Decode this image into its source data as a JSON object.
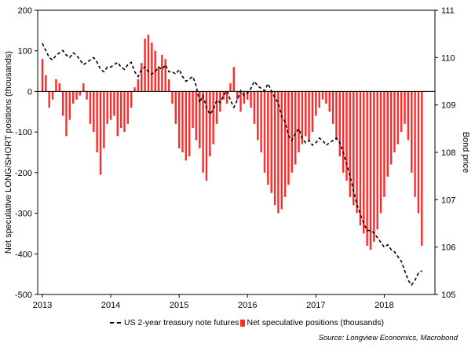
{
  "chart_data": {
    "type": "bar+line",
    "ylabel": "Net speculative LONG/SHORT positions (thousands)",
    "y2label": "Bond price",
    "source": "Source: Longview Economics, Macrobond",
    "ylim": [
      -500,
      200
    ],
    "y2lim": [
      105,
      111
    ],
    "y_ticks": [
      "200",
      "100",
      "0",
      "-100",
      "-200",
      "-300",
      "-400",
      "-500"
    ],
    "y2_ticks": [
      "111",
      "110",
      "109",
      "108",
      "107",
      "106",
      "105"
    ],
    "x_ticks": [
      "2013",
      "2014",
      "2015",
      "2016",
      "2017",
      "2018"
    ],
    "xlim": [
      2013.0,
      2018.65
    ],
    "grid": false,
    "legend_position": "bottom",
    "colors": {
      "bars": "#ff2a2a",
      "line": "#000000"
    },
    "series": [
      {
        "name": "US 2-year treasury note futures",
        "type": "line",
        "axis": "right",
        "style": "dashed",
        "x": [
          2013.0,
          2013.05,
          2013.1,
          2013.15,
          2013.2,
          2013.25,
          2013.3,
          2013.35,
          2013.4,
          2013.45,
          2013.5,
          2013.55,
          2013.6,
          2013.65,
          2013.7,
          2013.75,
          2013.8,
          2013.85,
          2013.9,
          2013.95,
          2014.0,
          2014.05,
          2014.1,
          2014.15,
          2014.2,
          2014.25,
          2014.3,
          2014.35,
          2014.4,
          2014.45,
          2014.5,
          2014.55,
          2014.6,
          2014.65,
          2014.7,
          2014.75,
          2014.8,
          2014.85,
          2014.9,
          2014.95,
          2015.0,
          2015.05,
          2015.1,
          2015.15,
          2015.2,
          2015.25,
          2015.3,
          2015.35,
          2015.4,
          2015.45,
          2015.5,
          2015.55,
          2015.6,
          2015.65,
          2015.7,
          2015.75,
          2015.8,
          2015.85,
          2015.9,
          2015.95,
          2016.0,
          2016.05,
          2016.1,
          2016.15,
          2016.2,
          2016.25,
          2016.3,
          2016.35,
          2016.4,
          2016.45,
          2016.5,
          2016.55,
          2016.6,
          2016.65,
          2016.7,
          2016.75,
          2016.8,
          2016.85,
          2016.9,
          2016.95,
          2017.0,
          2017.05,
          2017.1,
          2017.15,
          2017.2,
          2017.25,
          2017.3,
          2017.35,
          2017.4,
          2017.45,
          2017.5,
          2017.55,
          2017.6,
          2017.65,
          2017.7,
          2017.75,
          2017.8,
          2017.85,
          2017.9,
          2017.95,
          2018.0,
          2018.05,
          2018.1,
          2018.15,
          2018.2,
          2018.25,
          2018.3,
          2018.35,
          2018.4,
          2018.45,
          2018.5,
          2018.55
        ],
        "values": [
          110.3,
          110.15,
          110.0,
          109.95,
          110.05,
          110.1,
          110.15,
          110.05,
          110.0,
          110.1,
          110.05,
          109.95,
          109.85,
          109.9,
          109.95,
          110.0,
          109.9,
          109.75,
          109.7,
          109.8,
          109.8,
          109.85,
          109.9,
          109.8,
          109.75,
          109.85,
          109.9,
          109.7,
          109.6,
          109.75,
          109.8,
          109.7,
          109.65,
          109.7,
          109.8,
          109.75,
          109.85,
          109.7,
          109.7,
          109.65,
          109.75,
          109.6,
          109.5,
          109.55,
          109.6,
          109.4,
          109.05,
          109.2,
          108.95,
          108.8,
          108.9,
          109.1,
          109.05,
          109.2,
          109.3,
          109.1,
          108.95,
          109.1,
          109.3,
          109.2,
          109.25,
          109.35,
          109.5,
          109.4,
          109.35,
          109.3,
          109.45,
          109.3,
          109.15,
          109.05,
          108.75,
          108.65,
          108.35,
          108.25,
          108.4,
          108.5,
          108.3,
          108.2,
          108.25,
          108.15,
          108.2,
          108.3,
          108.25,
          108.15,
          108.2,
          108.25,
          108.3,
          108.2,
          108.0,
          107.75,
          107.5,
          107.2,
          106.9,
          106.7,
          106.5,
          106.35,
          106.35,
          106.3,
          106.2,
          106.1,
          106.0,
          106.05,
          105.95,
          105.9,
          105.8,
          105.7,
          105.5,
          105.3,
          105.2,
          105.3,
          105.45,
          105.5
        ]
      },
      {
        "name": "Net speculative positions (thousands)",
        "type": "bar",
        "axis": "left",
        "x": [
          2013.0,
          2013.05,
          2013.1,
          2013.15,
          2013.2,
          2013.25,
          2013.3,
          2013.35,
          2013.4,
          2013.45,
          2013.5,
          2013.55,
          2013.6,
          2013.65,
          2013.7,
          2013.75,
          2013.8,
          2013.85,
          2013.9,
          2013.95,
          2014.0,
          2014.05,
          2014.1,
          2014.15,
          2014.2,
          2014.25,
          2014.3,
          2014.35,
          2014.4,
          2014.45,
          2014.5,
          2014.55,
          2014.6,
          2014.65,
          2014.7,
          2014.75,
          2014.8,
          2014.85,
          2014.9,
          2014.95,
          2015.0,
          2015.05,
          2015.1,
          2015.15,
          2015.2,
          2015.25,
          2015.3,
          2015.35,
          2015.4,
          2015.45,
          2015.5,
          2015.55,
          2015.6,
          2015.65,
          2015.7,
          2015.75,
          2015.8,
          2015.85,
          2015.9,
          2015.95,
          2016.0,
          2016.05,
          2016.1,
          2016.15,
          2016.2,
          2016.25,
          2016.3,
          2016.35,
          2016.4,
          2016.45,
          2016.5,
          2016.55,
          2016.6,
          2016.65,
          2016.7,
          2016.75,
          2016.8,
          2016.85,
          2016.9,
          2016.95,
          2017.0,
          2017.05,
          2017.1,
          2017.15,
          2017.2,
          2017.25,
          2017.3,
          2017.35,
          2017.4,
          2017.45,
          2017.5,
          2017.55,
          2017.6,
          2017.65,
          2017.7,
          2017.75,
          2017.8,
          2017.85,
          2017.9,
          2017.95,
          2018.0,
          2018.05,
          2018.1,
          2018.15,
          2018.2,
          2018.25,
          2018.3,
          2018.35,
          2018.4,
          2018.45,
          2018.5,
          2018.55
        ],
        "values": [
          80,
          40,
          -40,
          -20,
          30,
          20,
          -60,
          -110,
          -70,
          -30,
          -20,
          -10,
          20,
          -20,
          -80,
          -100,
          -150,
          -205,
          -140,
          -80,
          -70,
          -60,
          -110,
          -90,
          -100,
          -80,
          -40,
          10,
          30,
          70,
          130,
          140,
          120,
          100,
          60,
          90,
          80,
          30,
          -30,
          -80,
          -140,
          -150,
          -170,
          -160,
          -90,
          -120,
          -140,
          -200,
          -220,
          -160,
          -130,
          -80,
          -50,
          -20,
          -30,
          20,
          60,
          -20,
          -50,
          -30,
          -20,
          -40,
          -80,
          -120,
          -150,
          -200,
          -230,
          -250,
          -280,
          -300,
          -290,
          -260,
          -230,
          -200,
          -180,
          -150,
          -130,
          -110,
          -120,
          -100,
          -60,
          -40,
          -20,
          -30,
          -50,
          -80,
          -120,
          -160,
          -200,
          -220,
          -260,
          -280,
          -300,
          -330,
          -350,
          -380,
          -390,
          -370,
          -340,
          -300,
          -260,
          -210,
          -180,
          -150,
          -130,
          -100,
          -80,
          -120,
          -200,
          -260,
          -300,
          -380
        ]
      }
    ]
  },
  "legend": {
    "line_label": "US 2-year treasury note futures",
    "bar_label": "Net speculative positions (thousands)"
  }
}
